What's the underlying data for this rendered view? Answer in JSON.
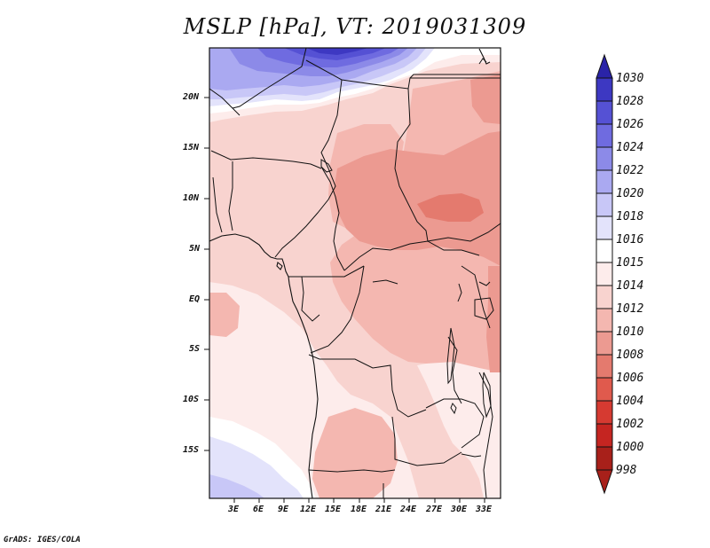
{
  "title": "MSLP [hPa], VT: 2019031309",
  "footer": "GrADS: IGES/COLA",
  "colors": {
    "c998": "#a8201a",
    "c1000": "#c52521",
    "c1002": "#d63a31",
    "c1004": "#e05a4d",
    "c1006": "#e47a6e",
    "c1008": "#ec9a91",
    "c1010": "#f4b7b0",
    "c1012": "#f8d3cf",
    "c1014": "#fdeceb",
    "c1015": "#ffffff",
    "c1016": "#e3e3fb",
    "c1018": "#c8c7f7",
    "c1020": "#aaa9f1",
    "c1022": "#8c8ae8",
    "c1024": "#6f6be0",
    "c1026": "#5551d4",
    "c1028": "#3d38c2",
    "c1030": "#2a23a8"
  },
  "map": {
    "lat_ticks": [
      "20N",
      "15N",
      "10N",
      "5N",
      "EQ",
      "5S",
      "10S",
      "15S"
    ],
    "lon_ticks": [
      "3E",
      "6E",
      "9E",
      "12E",
      "15E",
      "18E",
      "21E",
      "24E",
      "27E",
      "30E",
      "33E"
    ]
  },
  "colorbar": {
    "labels": [
      "1030",
      "1028",
      "1026",
      "1024",
      "1022",
      "1020",
      "1018",
      "1016",
      "1015",
      "1014",
      "1012",
      "1010",
      "1008",
      "1006",
      "1004",
      "1002",
      "1000",
      "998"
    ]
  }
}
